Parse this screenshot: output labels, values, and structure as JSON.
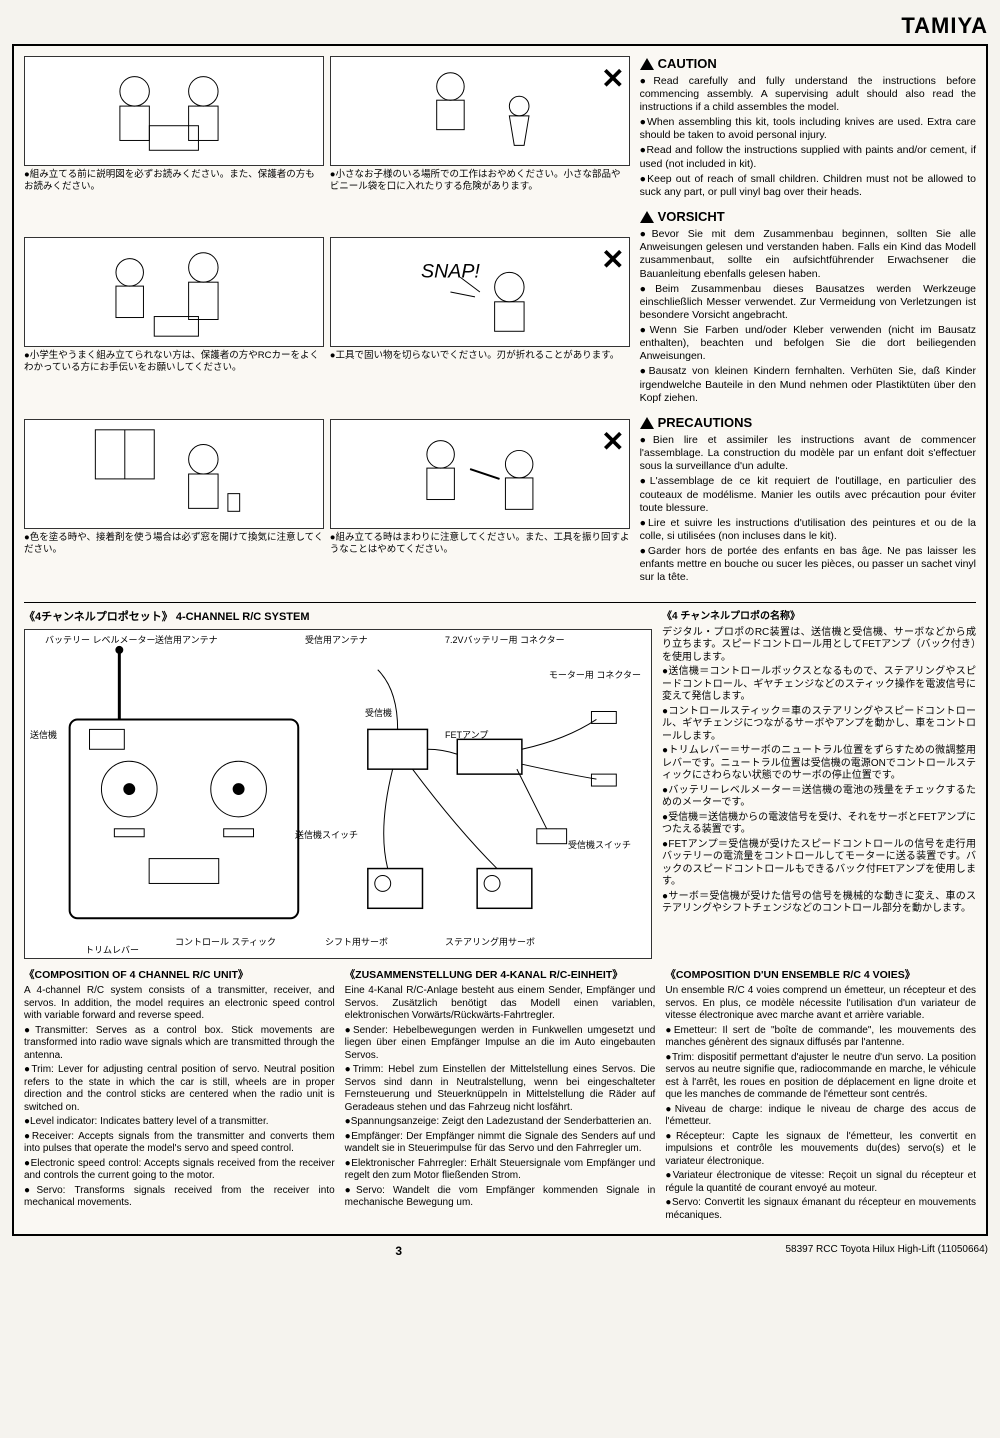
{
  "brand": "TAMIYA",
  "illustrations": [
    {
      "caption": "●組み立てる前に説明図を必ずお読みください。また、保護者の方もお読みください。",
      "xmark": false
    },
    {
      "caption": "●小さなお子様のいる場所での工作はおやめください。小さな部品やビニール袋を口に入れたりする危険があります。",
      "xmark": true
    },
    {
      "caption": "●小学生やうまく組み立てられない方は、保護者の方やRCカーをよくわかっている方にお手伝いをお願いしてください。",
      "xmark": false
    },
    {
      "caption": "●工具で固い物を切らないでください。刃が折れることがあります。",
      "xmark": true
    },
    {
      "caption": "●色を塗る時や、接着剤を使う場合は必ず窓を開けて換気に注意してください。",
      "xmark": false
    },
    {
      "caption": "●組み立てる時はまわりに注意してください。また、工具を振り回すようなことはやめてください。",
      "xmark": true
    }
  ],
  "warnings": {
    "en": {
      "heading": "CAUTION",
      "items": [
        "Read carefully and fully understand the instructions before commencing assembly. A supervising adult should also read the instructions if a child assembles the model.",
        "When assembling this kit, tools including knives are used. Extra care should be taken to avoid personal injury.",
        "Read and follow the instructions supplied with paints and/or cement, if used (not included in kit).",
        "Keep out of reach of small children. Children must not be allowed to suck any part, or pull vinyl bag over their heads."
      ]
    },
    "de": {
      "heading": "VORSICHT",
      "items": [
        "Bevor Sie mit dem Zusammenbau beginnen, sollten Sie alle Anweisungen gelesen und verstanden haben. Falls ein Kind das Modell zusammenbaut, sollte ein aufsichtführender Erwachsener die Bauanleitung ebenfalls gelesen haben.",
        "Beim Zusammenbau dieses Bausatzes werden Werkzeuge einschließlich Messer verwendet. Zur Vermeidung von Verletzungen ist besondere Vorsicht angebracht.",
        "Wenn Sie Farben und/oder Kleber verwenden (nicht im Bausatz enthalten), beachten und befolgen Sie die dort beiliegenden Anweisungen.",
        "Bausatz von kleinen Kindern fernhalten. Verhüten Sie, daß Kinder irgendwelche Bauteile in den Mund nehmen oder Plastiktüten über den Kopf ziehen."
      ]
    },
    "fr": {
      "heading": "PRECAUTIONS",
      "items": [
        "Bien lire et assimiler les instructions avant de commencer l'assemblage. La construction du modèle par un enfant doit s'effectuer sous la surveillance d'un adulte.",
        "L'assemblage de ce kit requiert de l'outillage, en particulier des couteaux de modélisme. Manier les outils avec précaution pour éviter toute blessure.",
        "Lire et suivre les instructions d'utilisation des peintures et ou de la colle, si utilisées (non incluses dans le kit).",
        "Garder hors de portée des enfants en bas âge. Ne pas laisser les enfants mettre en bouche ou sucer les pièces, ou passer un sachet vinyl sur la tête."
      ]
    }
  },
  "rc_system": {
    "title_jp": "《4チャンネルプロポセット》",
    "title_en": "4-CHANNEL R/C SYSTEM",
    "labels": {
      "battery_meter": "バッテリー\nレベルメーター",
      "tx_antenna": "送信用アンテナ",
      "rx_antenna": "受信用アンテナ",
      "battery_conn": "7.2Vバッテリー用\nコネクター",
      "motor_conn": "モーター用\nコネクター",
      "transmitter": "送信機",
      "receiver": "受信機",
      "fet_amp": "FETアンプ",
      "tx_switch": "送信機スイッチ",
      "rx_switch": "受信機スイッチ",
      "control_stick": "コントロール\nスティック",
      "trim_lever": "トリムレバー",
      "shift_servo": "シフト用サーボ",
      "steering_servo": "ステアリング用サーボ"
    },
    "side_title": "《4 チャンネルプロポの名称》",
    "side_intro": "デジタル・プロポのRC装置は、送信機と受信機、サーボなどから成り立ちます。スピードコントロール用としてFETアンプ（バック付き）を使用します。",
    "side_items": [
      "送信機＝コントロールボックスとなるもので、ステアリングやスピードコントロール、ギヤチェンジなどのスティック操作を電波信号に変えて発信します。",
      "コントロールスティック＝車のステアリングやスピードコントロール、ギヤチェンジにつながるサーボやアンプを動かし、車をコントロールします。",
      "トリムレバー＝サーボのニュートラル位置をずらすための微調整用レバーです。ニュートラル位置は受信機の電源ONでコントロールスティックにさわらない状態でのサーボの停止位置です。",
      "バッテリーレベルメーター＝送信機の電池の残量をチェックするためのメーターです。",
      "受信機＝送信機からの電波信号を受け、それをサーボとFETアンプにつたえる装置です。",
      "FETアンプ＝受信機が受けたスピードコントロールの信号を走行用バッテリーの電流量をコントロールしてモーターに送る装置です。バックのスピードコントロールもできるバック付FETアンプを使用します。",
      "サーボ＝受信機が受けた信号の信号を機械的な動きに変え、車のステアリングやシフトチェンジなどのコントロール部分を動かします。"
    ]
  },
  "composition": {
    "en": {
      "title": "《COMPOSITION OF 4 CHANNEL R/C UNIT》",
      "intro": "A 4-channel R/C system consists of a transmitter, receiver, and servos. In addition, the model requires an electronic speed control with variable forward and reverse speed.",
      "items": [
        "Transmitter: Serves as a control box. Stick movements are transformed into radio wave signals which are transmitted through the antenna.",
        "Trim: Lever for adjusting central position of servo. Neutral position refers to the state in which the car is still, wheels are in proper direction and the control sticks are centered when the radio unit is switched on.",
        "Level indicator: Indicates battery level of a transmitter.",
        "Receiver: Accepts signals from the transmitter and converts them into pulses that operate the model's servo and speed control.",
        "Electronic speed control: Accepts signals received from the receiver and controls the current going to the motor.",
        "Servo: Transforms signals received from the receiver into mechanical movements."
      ]
    },
    "de": {
      "title": "《ZUSAMMENSTELLUNG DER 4-KANAL R/C-EINHEIT》",
      "intro": "Eine 4-Kanal R/C-Anlage besteht aus einem Sender, Empfänger und Servos. Zusätzlich benötigt das Modell einen variablen, elektronischen Vorwärts/Rückwärts-Fahrtregler.",
      "items": [
        "Sender: Hebelbewegungen werden in Funkwellen umgesetzt und liegen über einen Empfänger Impulse an die im Auto eingebauten Servos.",
        "Trimm: Hebel zum Einstellen der Mittelstellung eines Servos. Die Servos sind dann in Neutralstellung, wenn bei eingeschalteter Fernsteuerung und Steuerknüppeln in Mittelstellung die Räder auf Geradeaus stehen und das Fahrzeug nicht losfährt.",
        "Spannungsanzeige: Zeigt den Ladezustand der Senderbatterien an.",
        "Empfänger: Der Empfänger nimmt die Signale des Senders auf und wandelt sie in Steuerimpulse für das Servo und den Fahrregler um.",
        "Elektronischer Fahrregler: Erhält Steuersignale vom Empfänger und regelt den zum Motor fließenden Strom.",
        "Servo: Wandelt die vom Empfänger kommenden Signale in mechanische Bewegung um."
      ]
    },
    "fr": {
      "title": "《COMPOSITION D'UN ENSEMBLE R/C 4 VOIES》",
      "intro": "Un ensemble R/C 4 voies comprend un émetteur, un récepteur et des servos. En plus, ce modèle nécessite l'utilisation d'un variateur de vitesse électronique avec marche avant et arrière variable.",
      "items": [
        "Emetteur: Il sert de \"boîte de commande\", les mouvements des manches génèrent des signaux diffusés par l'antenne.",
        "Trim: dispositif permettant d'ajuster le neutre d'un servo. La position servos au neutre signifie que, radiocommande en marche, le véhicule est à l'arrêt, les roues en position de déplacement en ligne droite et que les manches de commande de l'émetteur sont centrés.",
        "Niveau de charge: indique le niveau de charge des accus de l'émetteur.",
        "Récepteur: Capte les signaux de l'émetteur, les convertit en impulsions et contrôle les mouvements du(des) servo(s) et le variateur électronique.",
        "Variateur électronique de vitesse: Reçoit un signal du récepteur et régule la quantité de courant envoyé au moteur.",
        "Servo: Convertit les signaux émanant du récepteur en mouvements mécaniques."
      ]
    }
  },
  "footer": {
    "page_num": "3",
    "product": "58397 RCC Toyota Hilux High-Lift (11050664)"
  }
}
